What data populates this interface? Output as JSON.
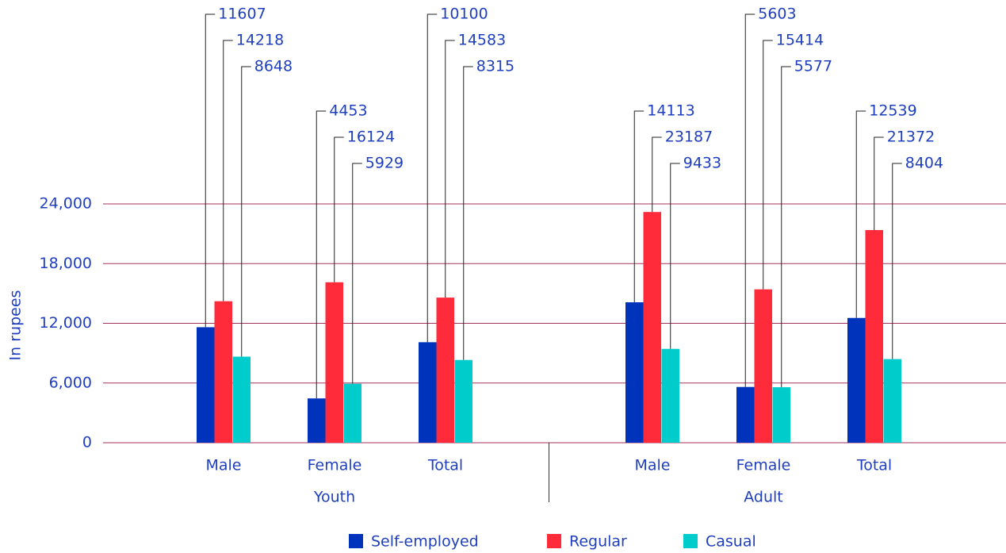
{
  "chart_data": {
    "type": "bar",
    "groups": [
      {
        "name": "Youth",
        "categories": [
          "Male",
          "Female",
          "Total"
        ]
      },
      {
        "name": "Adult",
        "categories": [
          "Male",
          "Female",
          "Total"
        ]
      }
    ],
    "series": [
      {
        "name": "Self-employed",
        "color": "#0033bb",
        "values": [
          11607,
          4453,
          10100,
          14113,
          5603,
          12539
        ]
      },
      {
        "name": "Regular",
        "color": "#ff2a3a",
        "values": [
          14218,
          16124,
          14583,
          23187,
          15414,
          21372
        ]
      },
      {
        "name": "Casual",
        "color": "#00cccc",
        "values": [
          8648,
          5929,
          8315,
          9433,
          5577,
          8404
        ]
      }
    ],
    "ylabel": "In rupees",
    "ylim": [
      0,
      24000
    ],
    "yticks": [
      0,
      {
        "value": 6000,
        "label": "6,000"
      },
      {
        "value": 12000,
        "label": "12,000"
      },
      {
        "value": 18000,
        "label": "18,000"
      },
      {
        "value": 24000,
        "label": "24,000"
      }
    ],
    "grid": true,
    "legend": "bottom"
  }
}
